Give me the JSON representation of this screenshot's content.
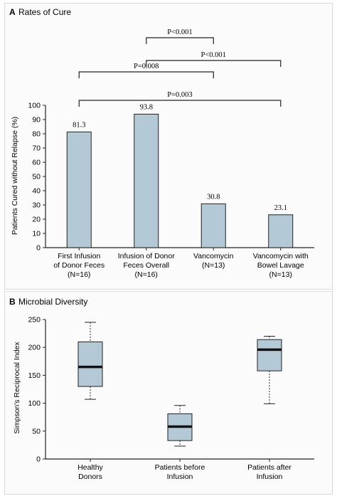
{
  "chart_data": [
    {
      "type": "bar",
      "panel_letter": "A",
      "title": "Rates of Cure",
      "ylabel": "Patients Cured without Relapse (%)",
      "ylim": [
        0,
        100
      ],
      "yticks": [
        "0",
        "10",
        "20",
        "30",
        "40",
        "50",
        "60",
        "70",
        "80",
        "90",
        "100"
      ],
      "categories": [
        [
          "First Infusion",
          "of Donor Feces",
          "(N=16)"
        ],
        [
          "Infusion of Donor",
          "Feces Overall",
          "(N=16)"
        ],
        [
          "Vancomycin",
          "(N=13)"
        ],
        [
          "Vancomycin with",
          "Bowel Lavage",
          "(N=13)"
        ]
      ],
      "values": [
        81.3,
        93.8,
        30.8,
        23.1
      ],
      "value_labels": [
        "81.3",
        "93.8",
        "30.8",
        "23.1"
      ],
      "comparisons": [
        {
          "from": 1,
          "to": 2,
          "label": "P<0.001"
        },
        {
          "from": 1,
          "to": 3,
          "label": "P<0.001"
        },
        {
          "from": 0,
          "to": 2,
          "label": "P=0.008"
        },
        {
          "from": 0,
          "to": 3,
          "label": "P=0.003"
        }
      ],
      "bar_color": "#b3c9d5",
      "grid": false
    },
    {
      "type": "box",
      "panel_letter": "B",
      "title": "Microbial Diversity",
      "ylabel": "Simpson's Reciprocal Index",
      "ylim": [
        0,
        250
      ],
      "yticks": [
        "0",
        "50",
        "100",
        "150",
        "200",
        "250"
      ],
      "categories": [
        [
          "Healthy",
          "Donors"
        ],
        [
          "Patients before",
          "Infusion"
        ],
        [
          "Patients after",
          "Infusion"
        ]
      ],
      "boxes": [
        {
          "min": 107,
          "q1": 130,
          "median": 165,
          "q3": 210,
          "max": 245
        },
        {
          "min": 23,
          "q1": 33,
          "median": 58,
          "q3": 81,
          "max": 96
        },
        {
          "min": 99,
          "q1": 158,
          "median": 196,
          "q3": 214,
          "max": 220
        }
      ],
      "box_color": "#b3c9d5",
      "grid": false
    }
  ]
}
